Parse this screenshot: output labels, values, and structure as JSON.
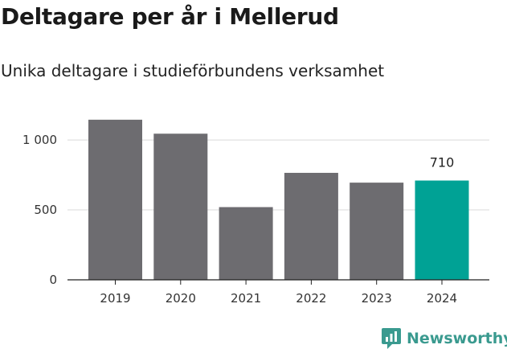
{
  "header": {
    "title": "Deltagare per år i Mellerud",
    "subtitle": "Unika deltagare i studieförbundens verksamhet"
  },
  "brand": {
    "name": "Newsworthy",
    "logo_icon": "bar-chart-logo-icon",
    "color": "#3a9a8f"
  },
  "colors": {
    "bar": "#6d6c70",
    "highlight": "#00a295",
    "grid": "#d9d9d9",
    "axis": "#222222"
  },
  "chart_data": {
    "type": "bar",
    "categories": [
      "2019",
      "2020",
      "2021",
      "2022",
      "2023",
      "2024"
    ],
    "values": [
      1145,
      1045,
      520,
      765,
      695,
      710
    ],
    "highlight_index": 5,
    "data_labels": [
      {
        "index": 5,
        "text": "710"
      }
    ],
    "title": "Deltagare per år i Mellerud",
    "subtitle": "Unika deltagare i studieförbundens verksamhet",
    "xlabel": "",
    "ylabel": "",
    "ylim": [
      0,
      1150
    ],
    "yticks": [
      0,
      500,
      1000
    ],
    "ytick_labels": [
      "0",
      "500",
      "1 000"
    ],
    "grid": true,
    "legend": "none"
  }
}
